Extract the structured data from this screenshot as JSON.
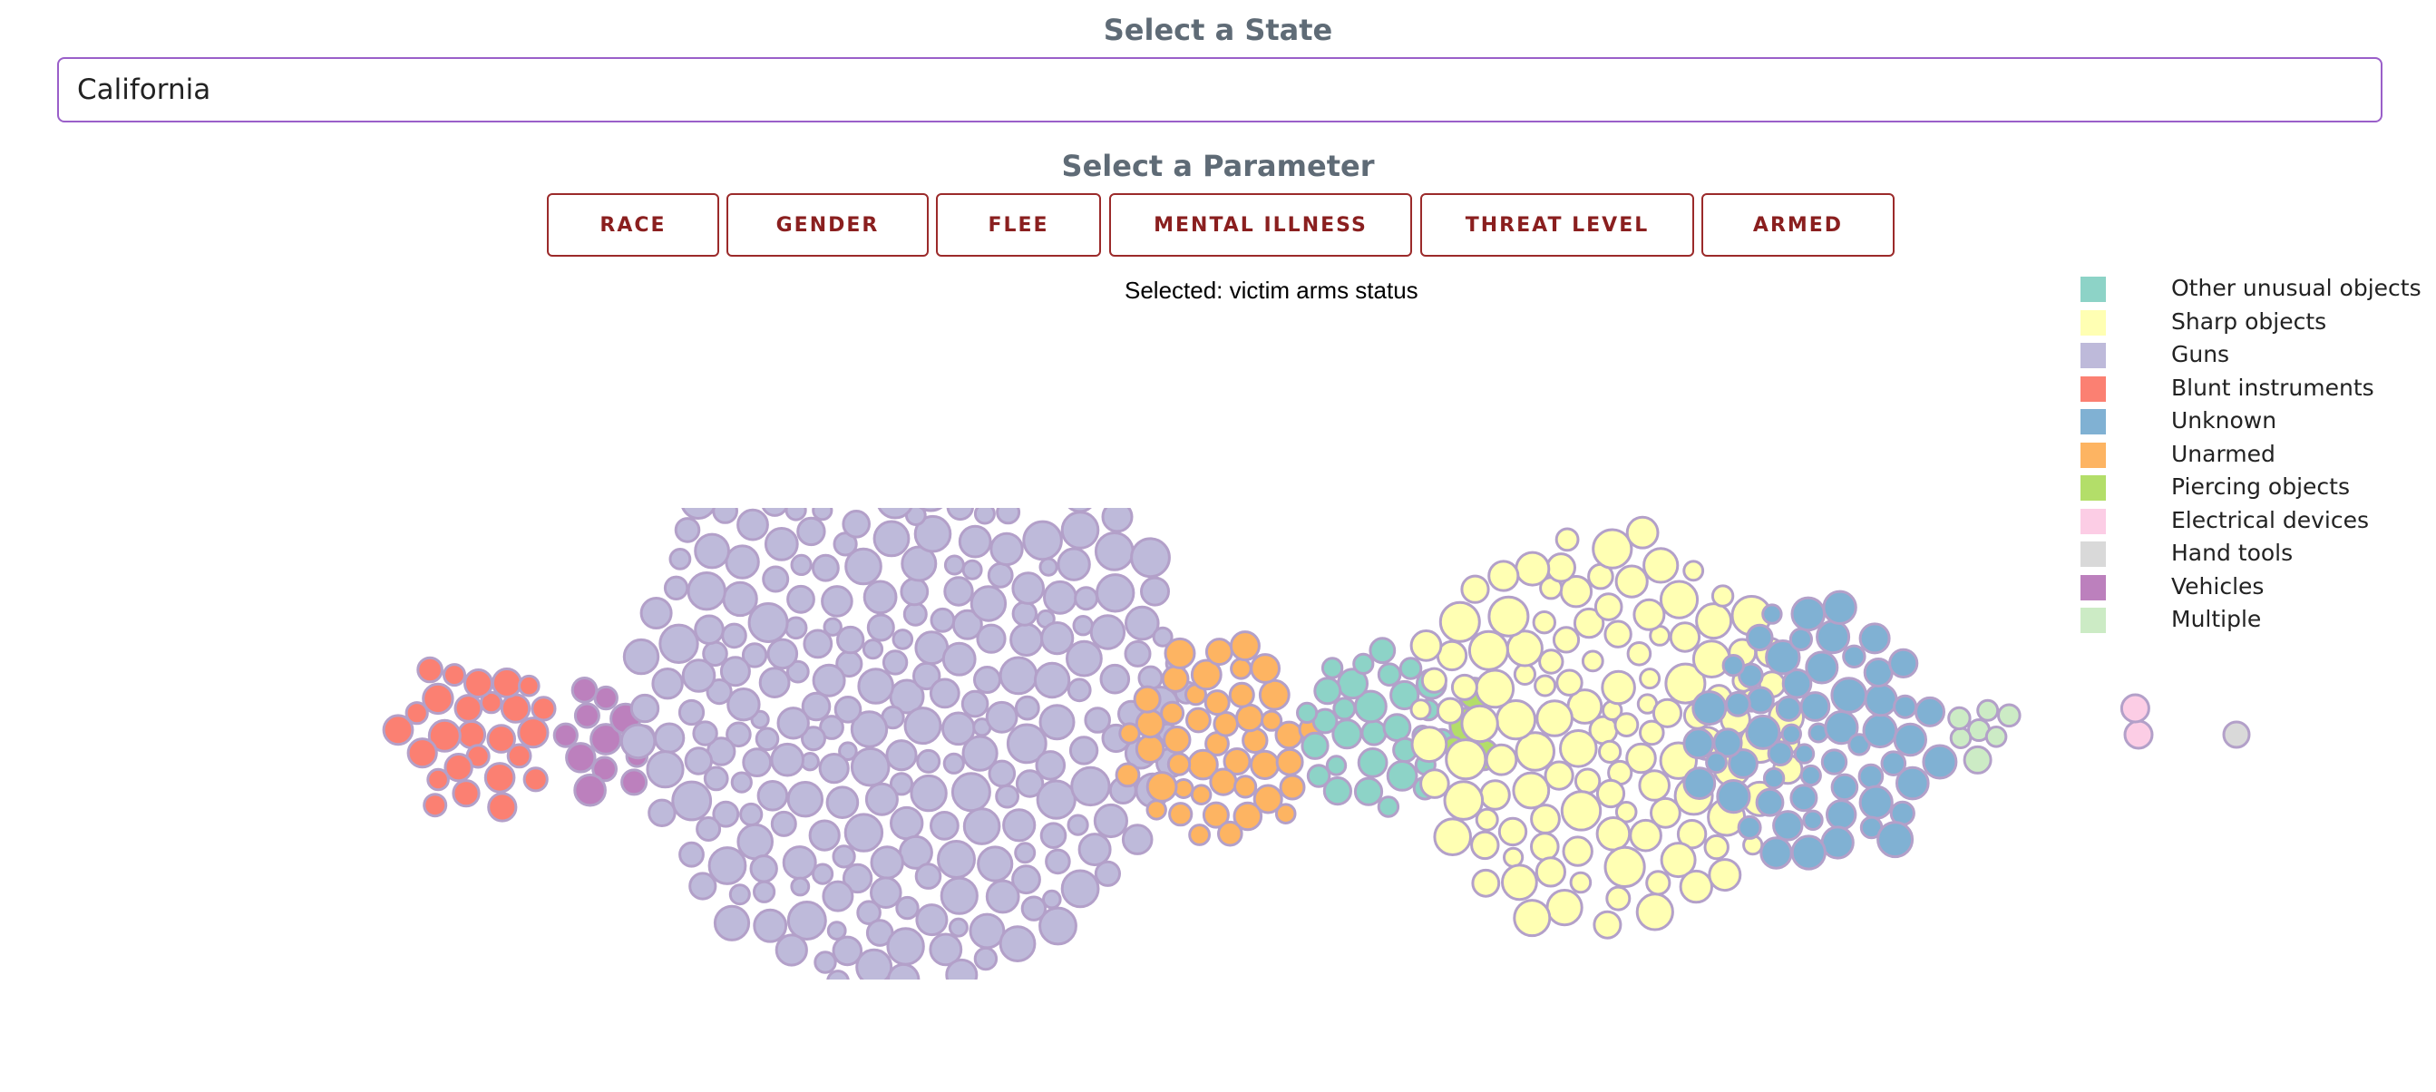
{
  "state_heading": "Select a State",
  "state_value": "California",
  "param_heading": "Select a Parameter",
  "params": [
    "RACE",
    "GENDER",
    "FLEE",
    "MENTAL ILLNESS",
    "THREAT LEVEL",
    "ARMED"
  ],
  "selected_text": "Selected: victim arms status",
  "chart_data": {
    "type": "bubble-cluster",
    "title": "",
    "legend_position": "top-right",
    "stroke_color": "#b3a0c9",
    "legend": [
      {
        "name": "Other unusual objects",
        "color": "#8dd3c7"
      },
      {
        "name": "Sharp objects",
        "color": "#ffffb3"
      },
      {
        "name": "Guns",
        "color": "#bebada"
      },
      {
        "name": "Blunt instruments",
        "color": "#fb8072"
      },
      {
        "name": "Unknown",
        "color": "#80b1d3"
      },
      {
        "name": "Unarmed",
        "color": "#fdb462"
      },
      {
        "name": "Piercing objects",
        "color": "#b3de69"
      },
      {
        "name": "Electrical devices",
        "color": "#fccde5"
      },
      {
        "name": "Hand tools",
        "color": "#d9d9d9"
      },
      {
        "name": "Vehicles",
        "color": "#bc80bd"
      },
      {
        "name": "Multiple",
        "color": "#ccebc5"
      }
    ],
    "clusters": [
      {
        "category": "Blunt instruments",
        "count": 26
      },
      {
        "category": "Vehicles",
        "count": 12
      },
      {
        "category": "Guns",
        "count": 260
      },
      {
        "category": "Unarmed",
        "count": 45
      },
      {
        "category": "Other unusual objects",
        "count": 30
      },
      {
        "category": "Piercing objects",
        "count": 4
      },
      {
        "category": "Sharp objects",
        "count": 120
      },
      {
        "category": "Unknown",
        "count": 60
      },
      {
        "category": "Multiple",
        "count": 7
      },
      {
        "category": "Electrical devices",
        "count": 2
      },
      {
        "category": "Hand tools",
        "count": 1
      }
    ]
  }
}
